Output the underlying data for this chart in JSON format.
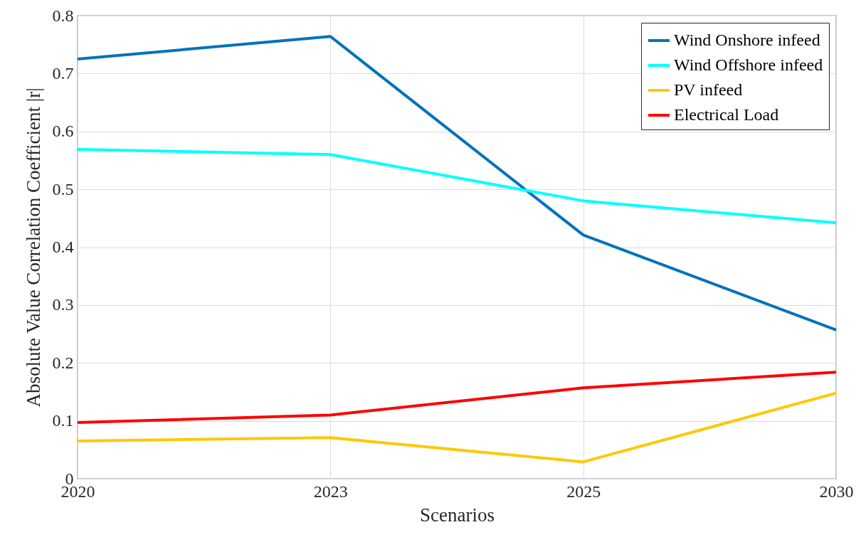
{
  "chart_data": {
    "type": "line",
    "xlabel": "Scenarios",
    "ylabel": "Absolute Value Correlation Coefficient |r|",
    "categories": [
      "2020",
      "2023",
      "2025",
      "2030"
    ],
    "series": [
      {
        "name": "Wind Onshore infeed",
        "color": "#0072bd",
        "values": [
          0.725,
          0.764,
          0.421,
          0.257
        ]
      },
      {
        "name": "Wind Offshore infeed",
        "color": "#00ffff",
        "values": [
          0.569,
          0.56,
          0.48,
          0.442
        ]
      },
      {
        "name": "PV infeed",
        "color": "#ffc800",
        "values": [
          0.065,
          0.071,
          0.029,
          0.148
        ]
      },
      {
        "name": "Electrical Load",
        "color": "#ff0000",
        "values": [
          0.097,
          0.11,
          0.157,
          0.184
        ]
      }
    ],
    "ylim": [
      0,
      0.8
    ],
    "yticks": [
      0,
      0.1,
      0.2,
      0.3,
      0.4,
      0.5,
      0.6,
      0.7,
      0.8
    ],
    "grid": true,
    "legend": "top right",
    "marker": "none",
    "line_style": "solid"
  }
}
